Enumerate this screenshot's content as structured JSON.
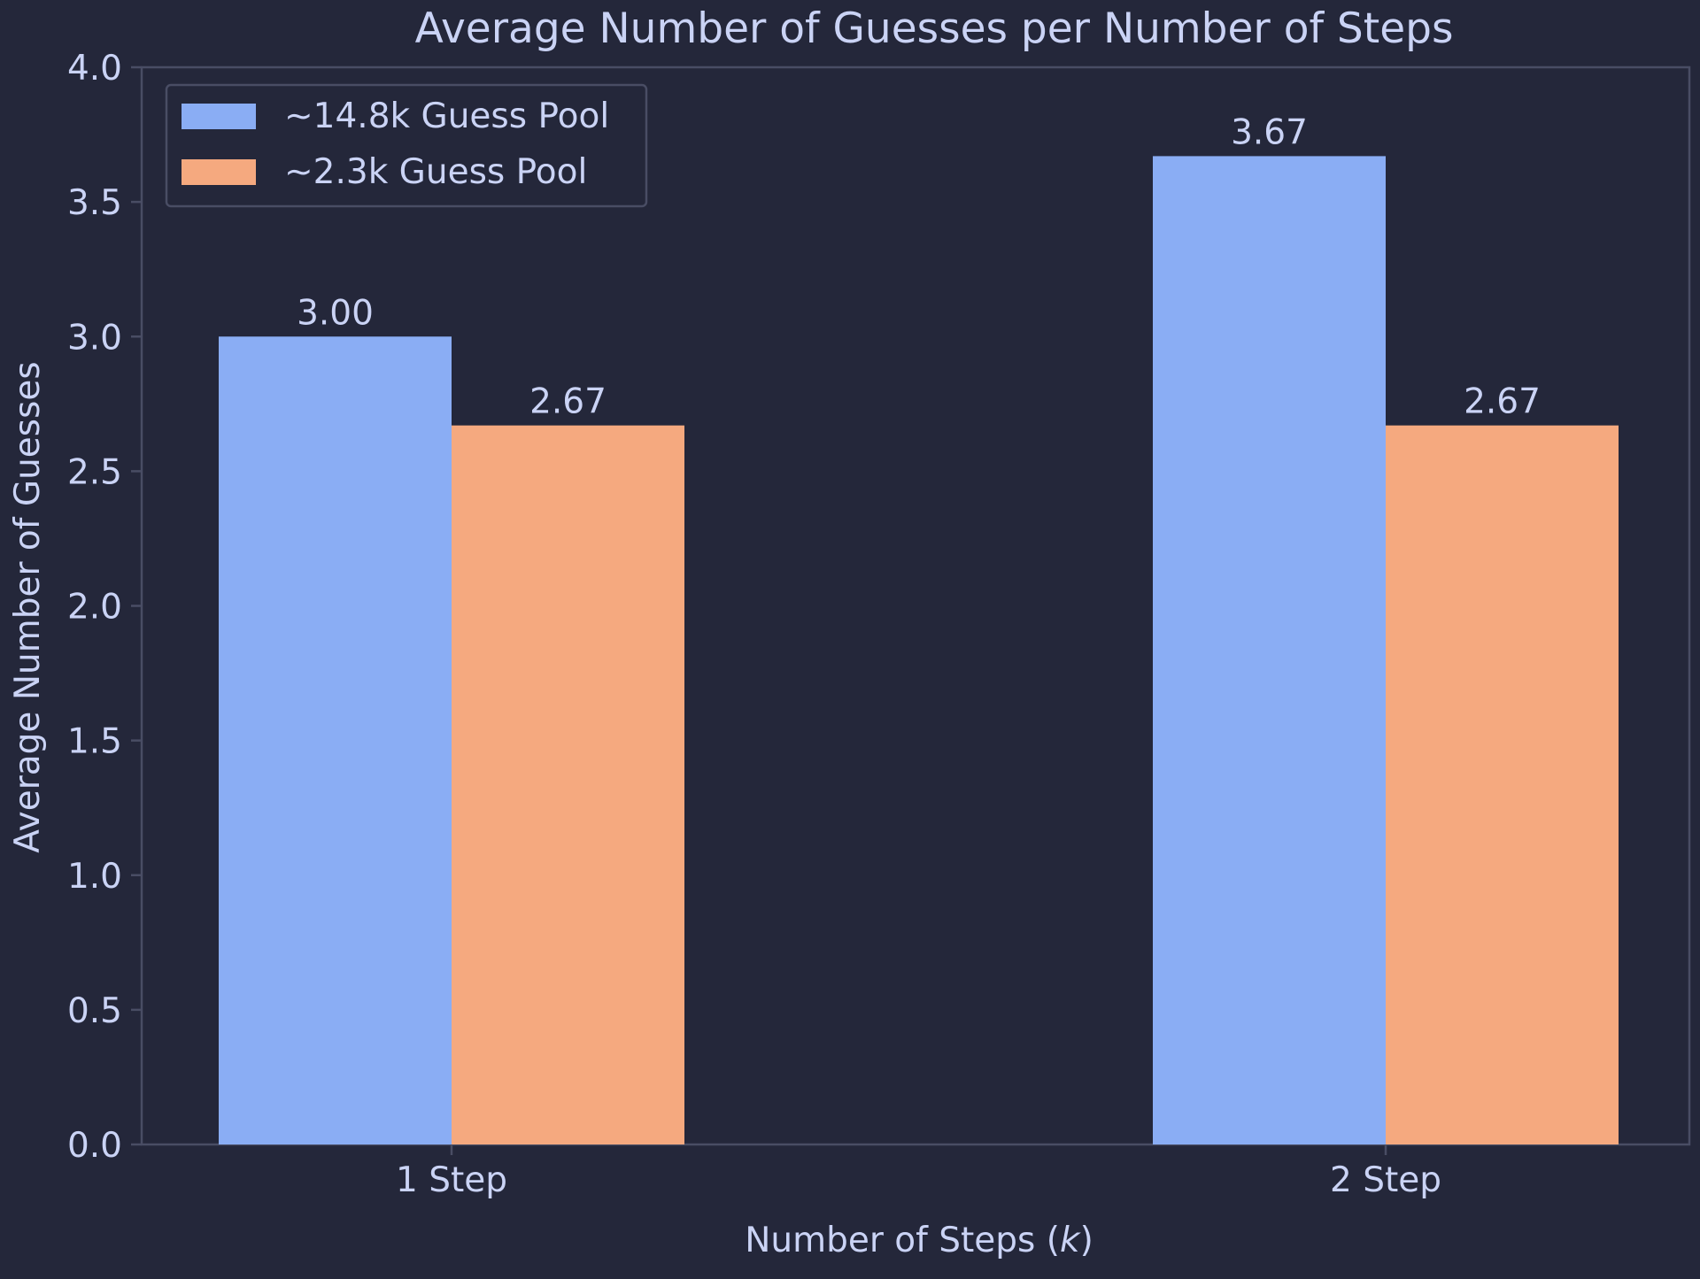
{
  "chart_data": {
    "type": "bar",
    "title": "Average Number of Guesses per Number of Steps",
    "xlabel": "Number of Steps (",
    "xlabel_var": "k",
    "xlabel_end": ")",
    "ylabel": "Average Number of Guesses",
    "categories": [
      "1 Step",
      "2 Step"
    ],
    "series": [
      {
        "name": "~14.8k Guess Pool",
        "color": "#8aadf4",
        "values": [
          3.0,
          3.67
        ],
        "labels": [
          "3.00",
          "3.67"
        ]
      },
      {
        "name": "~2.3k Guess Pool",
        "color": "#f5a97f",
        "values": [
          2.67,
          2.67
        ],
        "labels": [
          "2.67",
          "2.67"
        ]
      }
    ],
    "ylim": [
      0,
      4
    ],
    "yticks": [
      "0.0",
      "0.5",
      "1.0",
      "1.5",
      "2.0",
      "2.5",
      "3.0",
      "3.5",
      "4.0"
    ],
    "grid": false,
    "legend_position": "top-left",
    "background_color": "#24273a",
    "text_color": "#cad3f5",
    "axis_color": "#494d64"
  }
}
